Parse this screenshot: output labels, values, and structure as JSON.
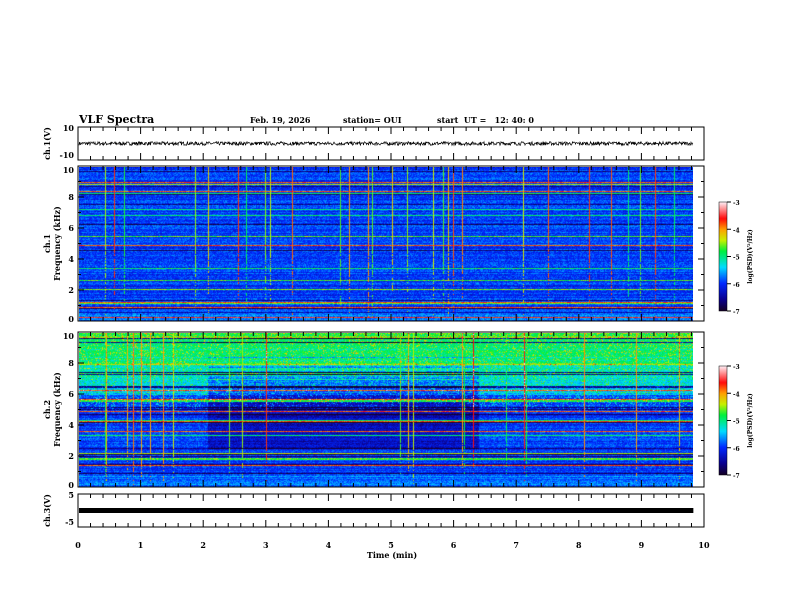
{
  "header": {
    "title": "VLF Spectra",
    "date": "Feb. 19, 2026",
    "station": "station= OUI",
    "start": "start  UT =   12: 40: 0"
  },
  "chart_data": [
    {
      "type": "line",
      "name": "ch1",
      "ylabel": "ch.1(V)",
      "ylim": [
        -10,
        10
      ],
      "yticks": [
        "10",
        "-10"
      ],
      "xlim": [
        0,
        10
      ],
      "data_end": 9.83,
      "description_value": "noise around 0 V, amplitude ~1 V"
    },
    {
      "type": "heatmap",
      "name": "ch1-spectrogram",
      "ylabel": "ch.1\nFrequency (kHz)",
      "ylabel_lines": [
        "ch.1",
        "Frequency  (kHz)"
      ],
      "ylim": [
        0,
        10
      ],
      "yticks": [
        "0",
        "2",
        "4",
        "6",
        "8",
        "10"
      ],
      "xlim": [
        0,
        10
      ],
      "data_end": 9.83,
      "colorbar": {
        "label": "log(PSD)(V²/Hz)",
        "range": [
          -7,
          -3
        ],
        "ticks": [
          "-3",
          "-4",
          "-5",
          "-6",
          "-7"
        ]
      }
    },
    {
      "type": "heatmap",
      "name": "ch2-spectrogram",
      "ylabel_lines": [
        "ch.2",
        "Frequency  (kHz)"
      ],
      "ylim": [
        0,
        10
      ],
      "yticks": [
        "0",
        "2",
        "4",
        "6",
        "8",
        "10"
      ],
      "xlim": [
        0,
        10
      ],
      "data_end": 9.83,
      "quiet_interval_min": [
        2.1,
        6.5
      ],
      "colorbar": {
        "label": "log(PSD)(V²/Hz)",
        "range": [
          -7,
          -3
        ],
        "ticks": [
          "-3",
          "-4",
          "-5",
          "-6",
          "-7"
        ]
      }
    },
    {
      "type": "line",
      "name": "ch3",
      "ylabel": "ch.3(V)",
      "ylim": [
        -5,
        5
      ],
      "yticks": [
        "5",
        "-5"
      ],
      "xlim": [
        0,
        10
      ],
      "data_end": 9.83,
      "constant_value": 0
    }
  ],
  "xaxis": {
    "label": "Time  (min)",
    "ticks": [
      "0",
      "1",
      "2",
      "3",
      "4",
      "5",
      "6",
      "7",
      "8",
      "9",
      "10"
    ]
  }
}
